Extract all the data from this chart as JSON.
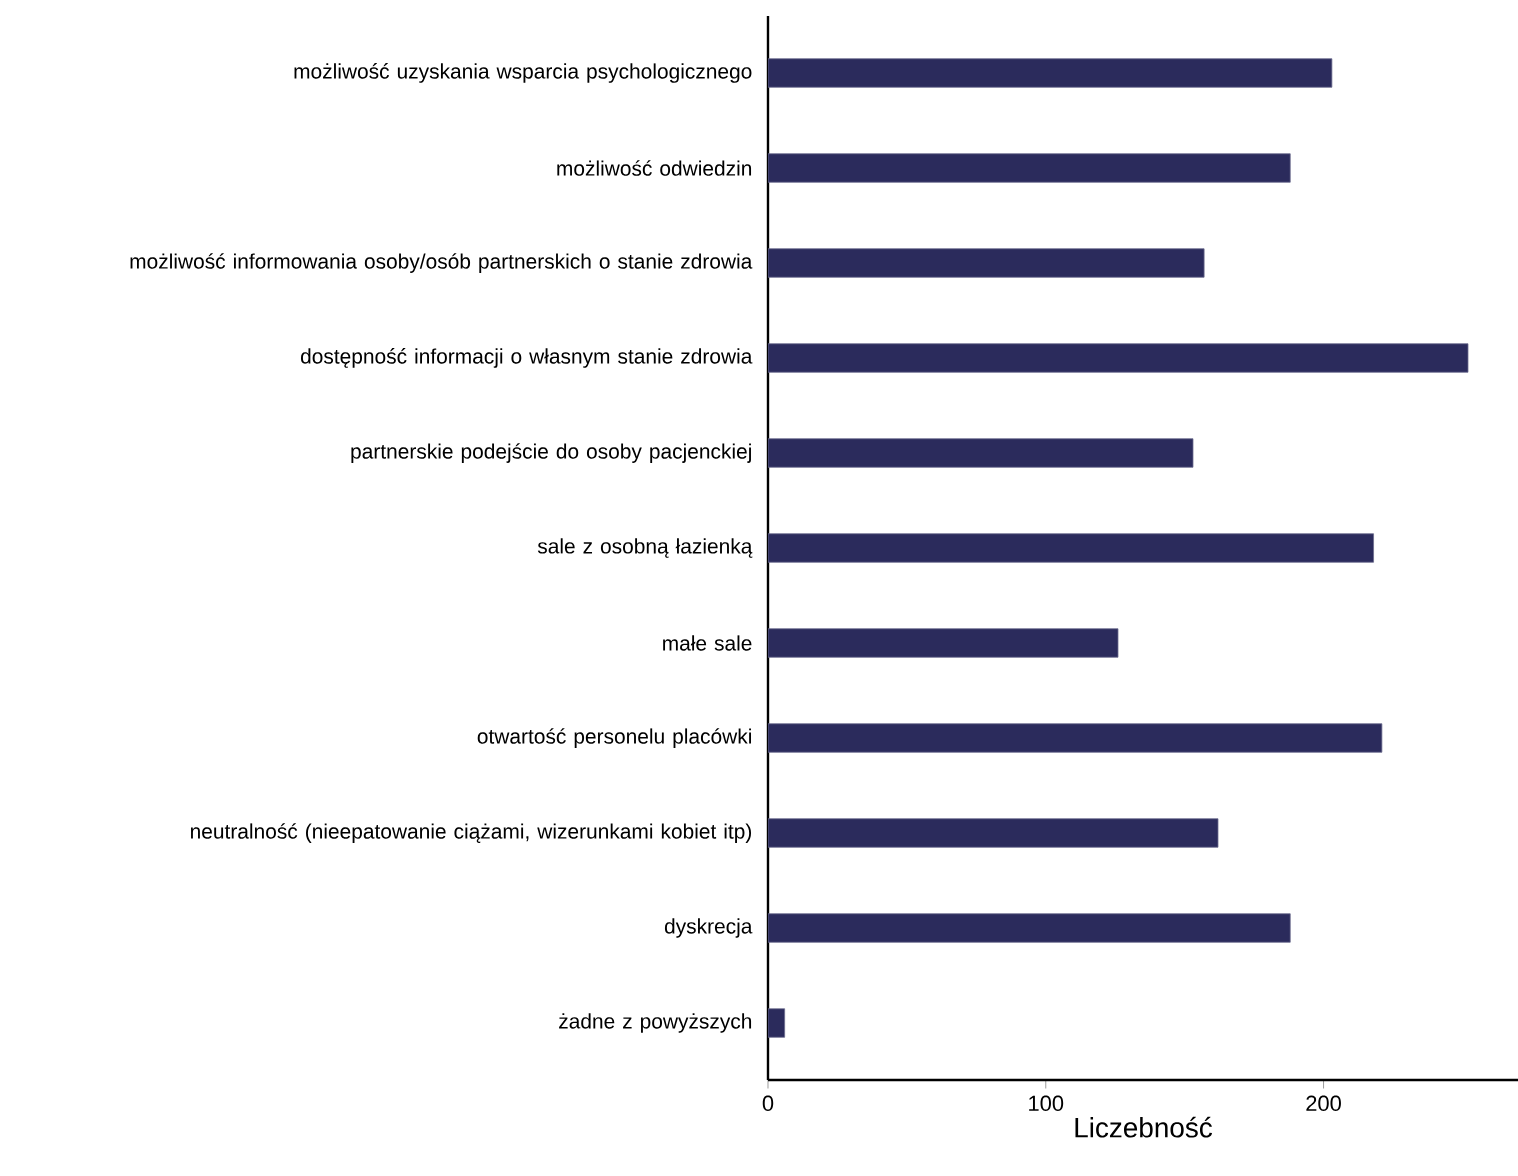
{
  "chart_data": {
    "type": "bar",
    "orientation": "horizontal",
    "xlabel": "Liczebność",
    "categories": [
      "możliwość uzyskania wsparcia psychologicznego",
      "możliwość odwiedzin",
      "możliwość informowania osoby/osób partnerskich o stanie zdrowia",
      "dostępność informacji o własnym stanie zdrowia",
      "partnerskie podejście do osoby pacjenckiej",
      "sale z osobną łazienką",
      "małe sale",
      "otwartość personelu placówki",
      "neutralność (nieepatowanie ciążami, wizerunkami kobiet itp)",
      "dyskrecja",
      "żadne z powyższych"
    ],
    "values": [
      203,
      188,
      157,
      252,
      153,
      218,
      126,
      221,
      162,
      188,
      6
    ],
    "color": "#2b2b5c",
    "xlim": [
      0,
      270
    ],
    "xticks": [
      0,
      100,
      200
    ],
    "grid": false
  }
}
